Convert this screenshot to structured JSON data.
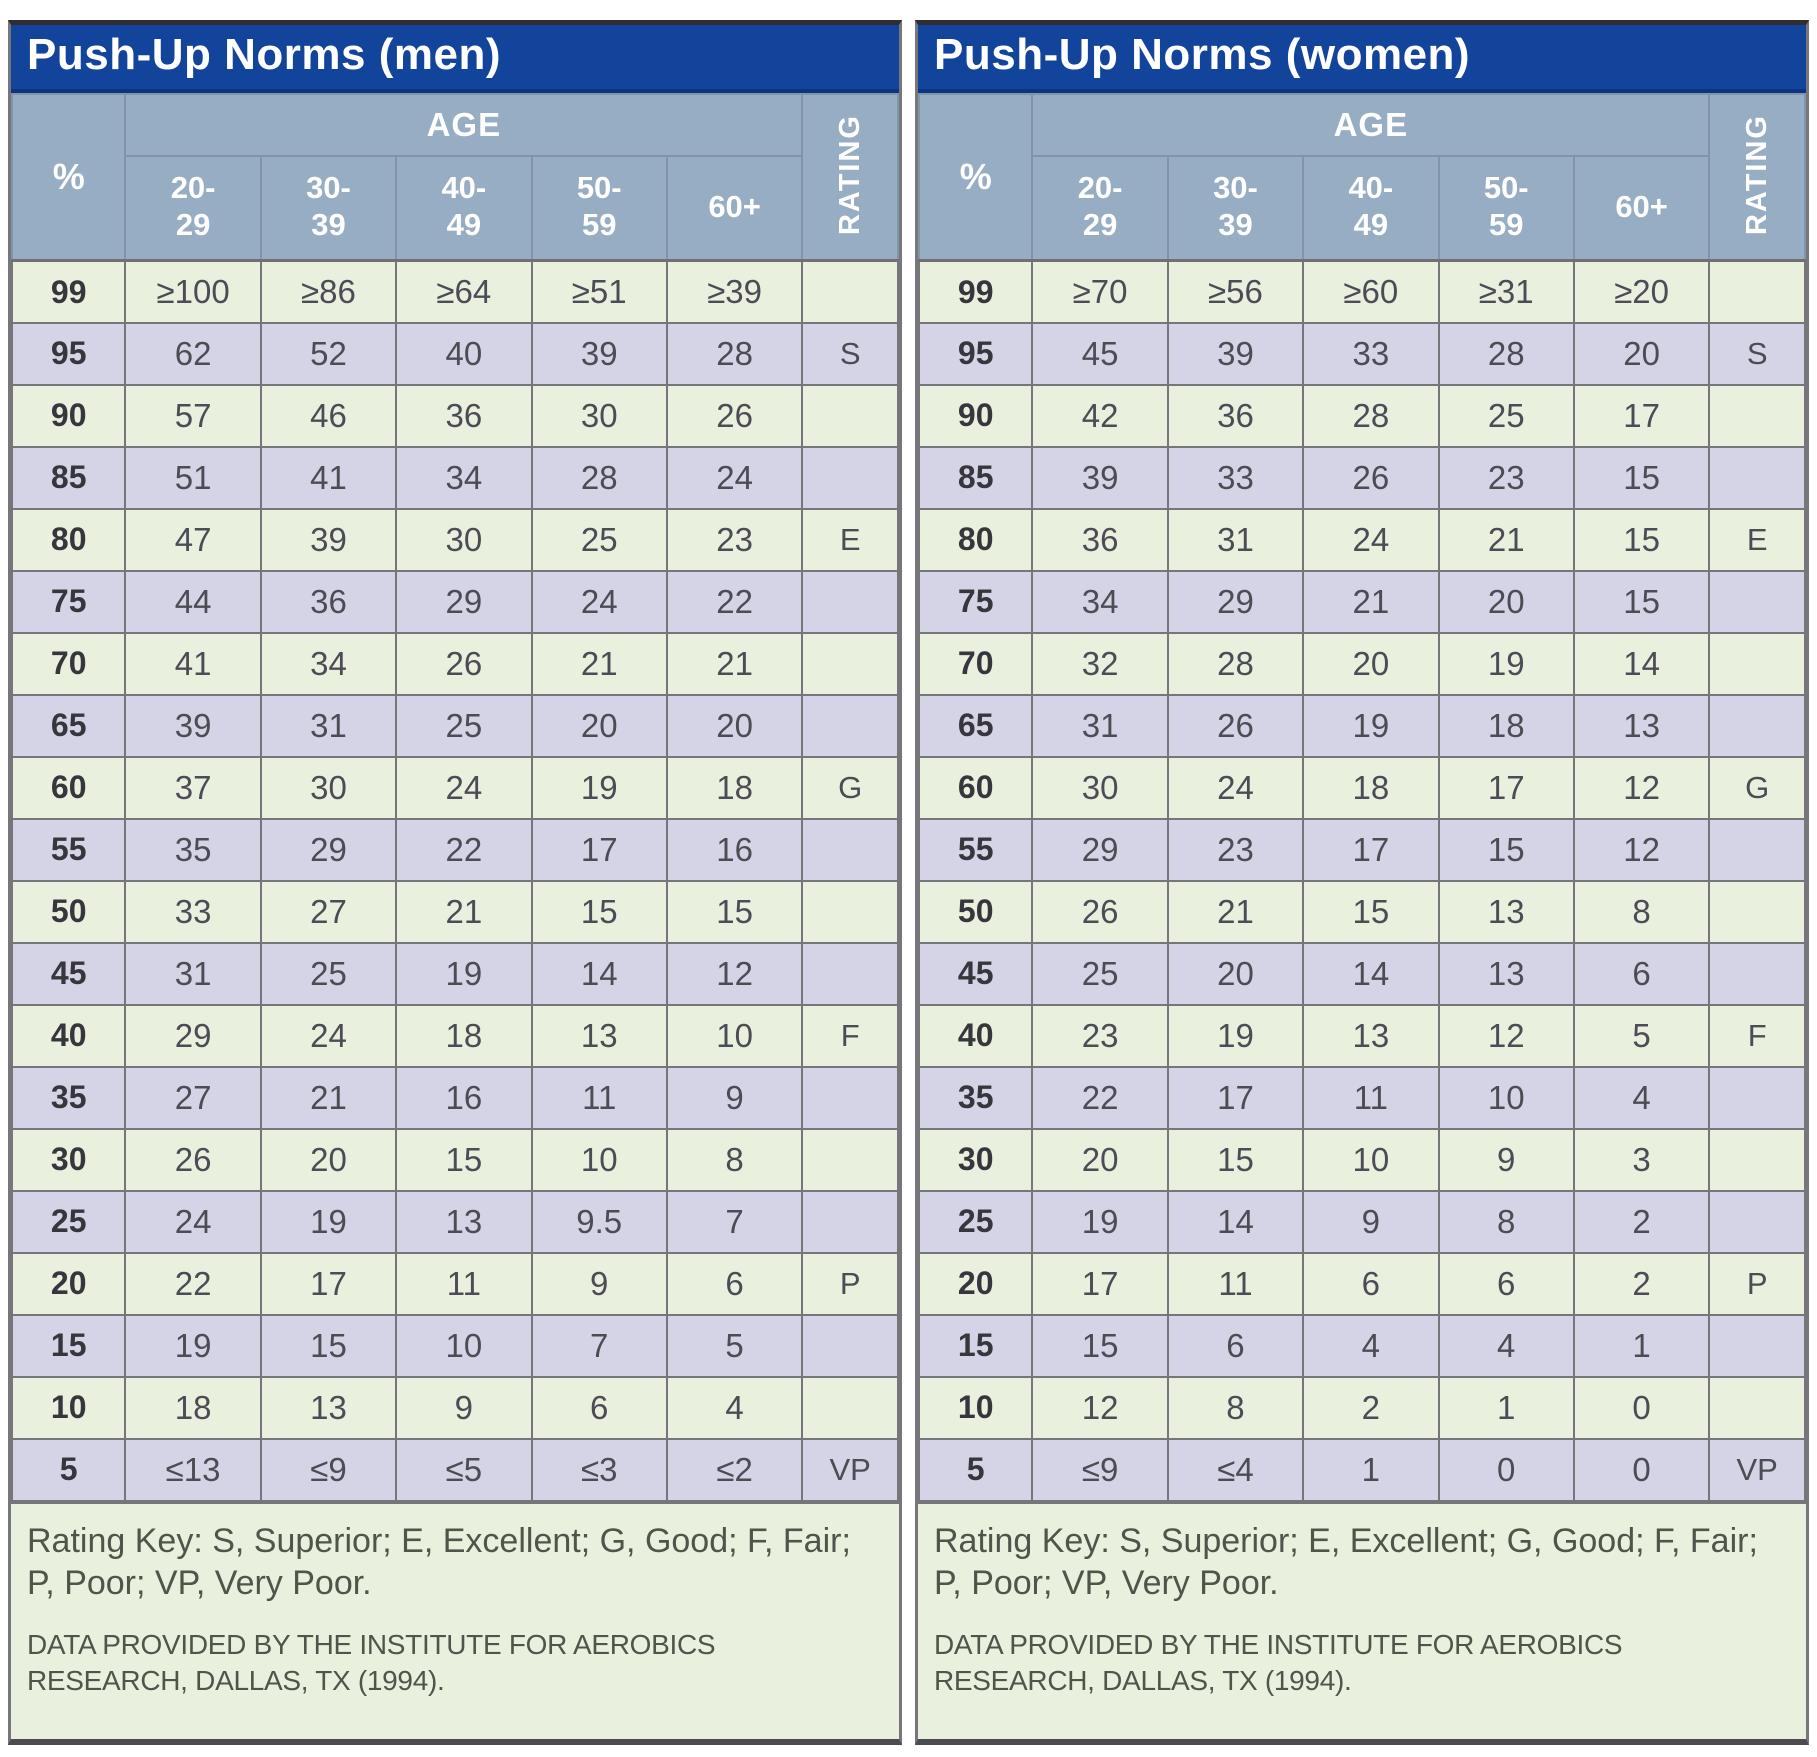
{
  "colors": {
    "title_bar_bg": "#12449c",
    "title_text": "#ffffff",
    "column_header_bg": "#97adc3",
    "row_stripe_green": "#e9f0de",
    "row_stripe_lavender": "#d5d4e6",
    "cell_border": "#76767a",
    "body_text": "#4c4c54"
  },
  "tables": [
    {
      "title": "Push-Up Norms (men)",
      "headers": {
        "percent": "%",
        "age": "AGE",
        "rating": "RATING"
      },
      "rating_key": "Rating Key: S, Superior; E, Excellent; G, Good; F, Fair; P, Poor; VP, Very Poor.",
      "source": "DATA PROVIDED BY THE INSTITUTE FOR AEROBICS RESEARCH, DALLAS, TX (1994)."
    },
    {
      "title": "Push-Up Norms (women)",
      "headers": {
        "percent": "%",
        "age": "AGE",
        "rating": "RATING"
      },
      "rating_key": "Rating Key: S, Superior; E, Excellent; G, Good; F, Fair; P, Poor; VP, Very Poor.",
      "source": "DATA PROVIDED BY THE INSTITUTE FOR AEROBICS RESEARCH, DALLAS, TX (1994)."
    }
  ],
  "chart_data": [
    {
      "type": "table",
      "title": "Push-Up Norms (men)",
      "columns": [
        "%",
        "20-29",
        "30-39",
        "40-49",
        "50-59",
        "60+",
        "RATING"
      ],
      "rows": [
        [
          "99",
          "≥100",
          "≥86",
          "≥64",
          "≥51",
          "≥39",
          ""
        ],
        [
          "95",
          "62",
          "52",
          "40",
          "39",
          "28",
          "S"
        ],
        [
          "90",
          "57",
          "46",
          "36",
          "30",
          "26",
          ""
        ],
        [
          "85",
          "51",
          "41",
          "34",
          "28",
          "24",
          ""
        ],
        [
          "80",
          "47",
          "39",
          "30",
          "25",
          "23",
          "E"
        ],
        [
          "75",
          "44",
          "36",
          "29",
          "24",
          "22",
          ""
        ],
        [
          "70",
          "41",
          "34",
          "26",
          "21",
          "21",
          ""
        ],
        [
          "65",
          "39",
          "31",
          "25",
          "20",
          "20",
          ""
        ],
        [
          "60",
          "37",
          "30",
          "24",
          "19",
          "18",
          "G"
        ],
        [
          "55",
          "35",
          "29",
          "22",
          "17",
          "16",
          ""
        ],
        [
          "50",
          "33",
          "27",
          "21",
          "15",
          "15",
          ""
        ],
        [
          "45",
          "31",
          "25",
          "19",
          "14",
          "12",
          ""
        ],
        [
          "40",
          "29",
          "24",
          "18",
          "13",
          "10",
          "F"
        ],
        [
          "35",
          "27",
          "21",
          "16",
          "11",
          "9",
          ""
        ],
        [
          "30",
          "26",
          "20",
          "15",
          "10",
          "8",
          ""
        ],
        [
          "25",
          "24",
          "19",
          "13",
          "9.5",
          "7",
          ""
        ],
        [
          "20",
          "22",
          "17",
          "11",
          "9",
          "6",
          "P"
        ],
        [
          "15",
          "19",
          "15",
          "10",
          "7",
          "5",
          ""
        ],
        [
          "10",
          "18",
          "13",
          "9",
          "6",
          "4",
          ""
        ],
        [
          "5",
          "≤13",
          "≤9",
          "≤5",
          "≤3",
          "≤2",
          "VP"
        ]
      ]
    },
    {
      "type": "table",
      "title": "Push-Up Norms (women)",
      "columns": [
        "%",
        "20-29",
        "30-39",
        "40-49",
        "50-59",
        "60+",
        "RATING"
      ],
      "rows": [
        [
          "99",
          "≥70",
          "≥56",
          "≥60",
          "≥31",
          "≥20",
          ""
        ],
        [
          "95",
          "45",
          "39",
          "33",
          "28",
          "20",
          "S"
        ],
        [
          "90",
          "42",
          "36",
          "28",
          "25",
          "17",
          ""
        ],
        [
          "85",
          "39",
          "33",
          "26",
          "23",
          "15",
          ""
        ],
        [
          "80",
          "36",
          "31",
          "24",
          "21",
          "15",
          "E"
        ],
        [
          "75",
          "34",
          "29",
          "21",
          "20",
          "15",
          ""
        ],
        [
          "70",
          "32",
          "28",
          "20",
          "19",
          "14",
          ""
        ],
        [
          "65",
          "31",
          "26",
          "19",
          "18",
          "13",
          ""
        ],
        [
          "60",
          "30",
          "24",
          "18",
          "17",
          "12",
          "G"
        ],
        [
          "55",
          "29",
          "23",
          "17",
          "15",
          "12",
          ""
        ],
        [
          "50",
          "26",
          "21",
          "15",
          "13",
          "8",
          ""
        ],
        [
          "45",
          "25",
          "20",
          "14",
          "13",
          "6",
          ""
        ],
        [
          "40",
          "23",
          "19",
          "13",
          "12",
          "5",
          "F"
        ],
        [
          "35",
          "22",
          "17",
          "11",
          "10",
          "4",
          ""
        ],
        [
          "30",
          "20",
          "15",
          "10",
          "9",
          "3",
          ""
        ],
        [
          "25",
          "19",
          "14",
          "9",
          "8",
          "2",
          ""
        ],
        [
          "20",
          "17",
          "11",
          "6",
          "6",
          "2",
          "P"
        ],
        [
          "15",
          "15",
          "6",
          "4",
          "4",
          "1",
          ""
        ],
        [
          "10",
          "12",
          "8",
          "2",
          "1",
          "0",
          ""
        ],
        [
          "5",
          "≤9",
          "≤4",
          "1",
          "0",
          "0",
          "VP"
        ]
      ]
    }
  ]
}
